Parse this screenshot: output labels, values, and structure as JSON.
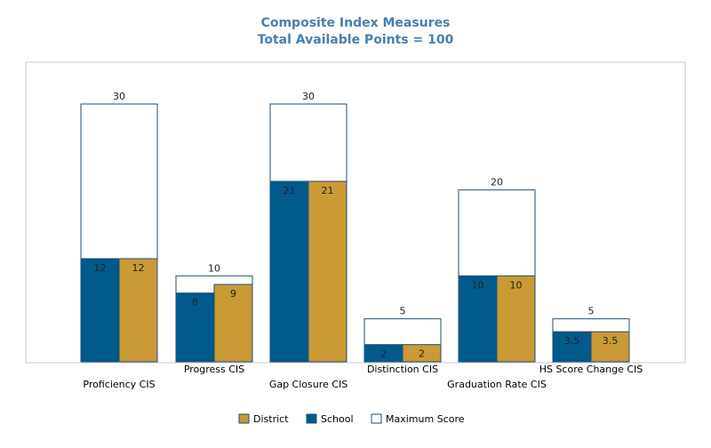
{
  "chart_data": {
    "type": "bar",
    "title": "Composite Index Measures",
    "subtitle": "Total Available Points = 100",
    "categories": [
      "Proficiency CIS",
      "Progress CIS",
      "Gap Closure CIS",
      "Distinction CIS",
      "Graduation Rate CIS",
      "HS Score Change CIS"
    ],
    "series": [
      {
        "name": "School",
        "values": [
          12,
          8,
          21,
          2,
          10,
          3.5
        ]
      },
      {
        "name": "District",
        "values": [
          12,
          9,
          21,
          2,
          10,
          3.5
        ]
      },
      {
        "name": "Maximum Score",
        "values": [
          30,
          10,
          30,
          5,
          20,
          5
        ]
      }
    ],
    "value_labels": {
      "School": [
        "12",
        "8",
        "21",
        "2",
        "10",
        "3.5"
      ],
      "District": [
        "12",
        "9",
        "21",
        "2",
        "10",
        "3.5"
      ],
      "Maximum Score": [
        "30",
        "10",
        "30",
        "5",
        "20",
        "5"
      ]
    },
    "ylim": [
      0,
      30
    ],
    "grid": false,
    "legend_position": "bottom",
    "legend": [
      "District",
      "School",
      "Maximum Score"
    ],
    "colors": {
      "School": "#005a8c",
      "District": "#c99a35",
      "Maximum Score": "#ffffff",
      "outline": "#1f4e79",
      "title": "#4a7fae",
      "frame": "#c8c8c8"
    }
  }
}
